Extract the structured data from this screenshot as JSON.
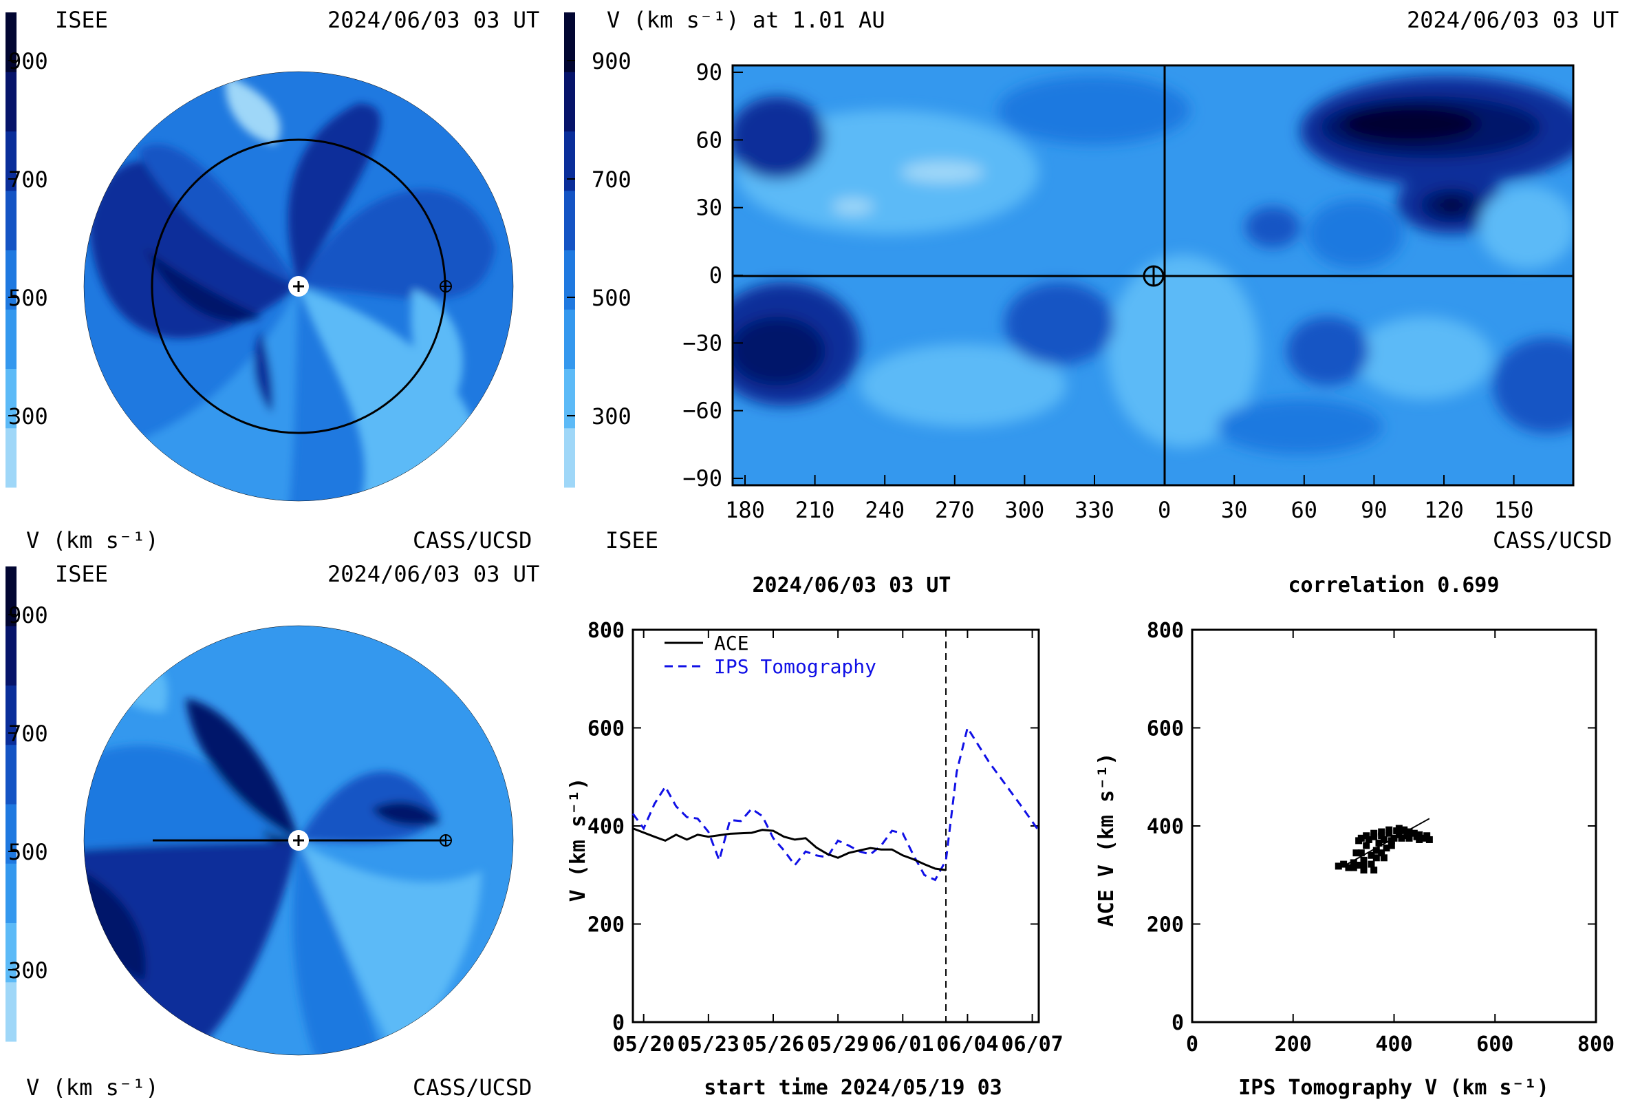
{
  "colors": {
    "scale": [
      "#9fd7f8",
      "#5cbaf7",
      "#3498ee",
      "#1f79e0",
      "#1454c4",
      "#0a2e9a",
      "#06146a",
      "#020632"
    ],
    "ips_line": "#1010e6",
    "ace_line": "#000000"
  },
  "ecliptic_panel": {
    "org_left": "ISEE",
    "timestamp": "2024/06/03 03 UT",
    "org_right": "CASS/UCSD",
    "colorbar_label": "V (km s⁻¹)",
    "ticks": [
      "900",
      "700",
      "500",
      "300"
    ]
  },
  "meridional_panel": {
    "org_left": "ISEE",
    "timestamp": "2024/06/03 03 UT",
    "org_right": "CASS/UCSD",
    "colorbar_label": "V (km s⁻¹)",
    "ticks": [
      "900",
      "700",
      "500",
      "300"
    ]
  },
  "synoptic_map": {
    "title": "V (km s⁻¹) at 1.01 AU",
    "timestamp": "2024/06/03 03 UT",
    "org_left": "ISEE",
    "org_right": "CASS/UCSD",
    "colorbar_ticks": [
      "900",
      "700",
      "500",
      "300"
    ],
    "lat_ticks": [
      "90",
      "60",
      "30",
      "0",
      "−30",
      "−60",
      "−90"
    ],
    "lon_ticks": [
      "180",
      "210",
      "240",
      "270",
      "300",
      "330",
      "0",
      "30",
      "60",
      "90",
      "120",
      "150"
    ]
  },
  "chart_data": [
    {
      "type": "line",
      "title": "2024/06/03 03 UT",
      "xlabel": "start time 2024/05/19 03",
      "ylabel": "V (km s⁻¹)",
      "ylim": [
        0,
        800
      ],
      "xlim": [
        0.5,
        19.3
      ],
      "x_tick_labels": [
        "05/20",
        "05/23",
        "05/26",
        "05/29",
        "06/01",
        "06/04",
        "06/07"
      ],
      "x_tick_days": [
        1,
        4,
        7,
        10,
        13,
        16,
        19
      ],
      "y_ticks": [
        0,
        200,
        400,
        600,
        800
      ],
      "current_time_day": 15.0,
      "legend": "top-left",
      "series": [
        {
          "name": "ACE",
          "x": [
            0.5,
            1.5,
            2.0,
            2.5,
            3.0,
            3.5,
            4.0,
            5.0,
            6.0,
            6.5,
            7.0,
            7.5,
            8.0,
            8.5,
            9.0,
            9.5,
            10.0,
            10.5,
            11.0,
            11.5,
            12.0,
            12.5,
            13.0,
            13.5,
            14.0,
            14.5,
            15.0
          ],
          "y": [
            395,
            378,
            370,
            382,
            372,
            382,
            378,
            384,
            386,
            392,
            390,
            378,
            372,
            375,
            356,
            343,
            335,
            345,
            350,
            355,
            352,
            352,
            340,
            332,
            322,
            313,
            310
          ]
        },
        {
          "name": "IPS Tomography",
          "x": [
            0.5,
            1.0,
            1.5,
            2.0,
            2.5,
            3.0,
            3.5,
            4.0,
            4.5,
            5.0,
            5.5,
            6.0,
            6.5,
            7.0,
            7.5,
            8.0,
            8.5,
            9.0,
            9.5,
            10.0,
            10.5,
            11.0,
            11.5,
            12.0,
            12.5,
            13.0,
            13.5,
            14.0,
            14.5,
            15.0,
            15.5,
            16.0,
            17.0,
            18.0,
            18.5,
            19.3
          ],
          "y": [
            425,
            395,
            445,
            480,
            440,
            418,
            415,
            388,
            330,
            412,
            410,
            435,
            420,
            375,
            350,
            320,
            348,
            340,
            336,
            370,
            360,
            348,
            342,
            360,
            390,
            385,
            340,
            300,
            290,
            330,
            510,
            600,
            530,
            470,
            440,
            390
          ]
        }
      ]
    },
    {
      "type": "scatter",
      "title": "correlation 0.699",
      "xlabel": "IPS Tomography V (km s⁻¹)",
      "ylabel": "ACE V (km s⁻¹)",
      "xlim": [
        0,
        800
      ],
      "ylim": [
        0,
        800
      ],
      "x_ticks": [
        0,
        200,
        400,
        600,
        800
      ],
      "y_ticks": [
        0,
        200,
        400,
        600,
        800
      ],
      "points": [
        [
          290,
          318
        ],
        [
          300,
          322
        ],
        [
          310,
          315
        ],
        [
          320,
          325
        ],
        [
          330,
          320
        ],
        [
          335,
          345
        ],
        [
          340,
          330
        ],
        [
          345,
          360
        ],
        [
          350,
          372
        ],
        [
          355,
          340
        ],
        [
          360,
          378
        ],
        [
          365,
          350
        ],
        [
          370,
          365
        ],
        [
          375,
          380
        ],
        [
          380,
          372
        ],
        [
          385,
          355
        ],
        [
          390,
          385
        ],
        [
          395,
          370
        ],
        [
          400,
          375
        ],
        [
          405,
          390
        ],
        [
          410,
          382
        ],
        [
          415,
          375
        ],
        [
          420,
          392
        ],
        [
          425,
          380
        ],
        [
          430,
          388
        ],
        [
          440,
          385
        ],
        [
          445,
          378
        ],
        [
          450,
          382
        ],
        [
          460,
          375
        ],
        [
          470,
          372
        ],
        [
          320,
          315
        ],
        [
          340,
          318
        ],
        [
          355,
          322
        ],
        [
          365,
          335
        ],
        [
          375,
          345
        ],
        [
          395,
          360
        ],
        [
          380,
          335
        ],
        [
          360,
          310
        ],
        [
          340,
          310
        ],
        [
          325,
          345
        ],
        [
          330,
          370
        ],
        [
          345,
          380
        ],
        [
          335,
          375
        ],
        [
          360,
          385
        ],
        [
          375,
          388
        ],
        [
          390,
          392
        ],
        [
          410,
          395
        ],
        [
          430,
          375
        ],
        [
          450,
          372
        ],
        [
          465,
          380
        ]
      ],
      "fit_line": [
        [
          300,
          318
        ],
        [
          470,
          415
        ]
      ]
    }
  ]
}
